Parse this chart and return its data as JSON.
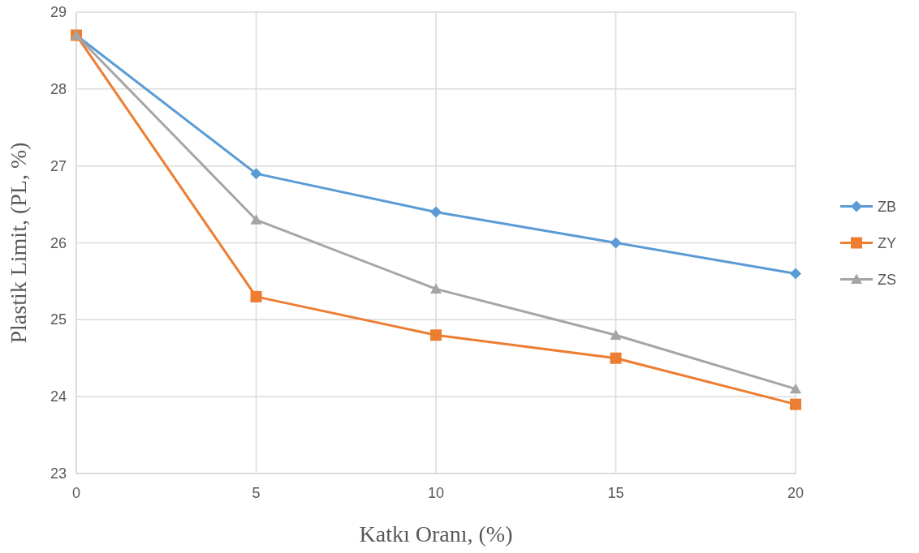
{
  "chart_data": {
    "type": "line",
    "xlabel": "Katkı Oranı, (%)",
    "ylabel": "Plastik Limit, (PL, %)",
    "x": [
      0,
      5,
      10,
      15,
      20
    ],
    "series": [
      {
        "name": "ZB",
        "color": "#5b9bd5",
        "marker": "diamond",
        "values": [
          28.7,
          26.9,
          26.4,
          26.0,
          25.6
        ]
      },
      {
        "name": "ZY",
        "color": "#ed7d31",
        "marker": "square",
        "values": [
          28.7,
          25.3,
          24.8,
          24.5,
          23.9
        ]
      },
      {
        "name": "ZS",
        "color": "#a5a5a5",
        "marker": "triangle",
        "values": [
          28.7,
          26.3,
          25.4,
          24.8,
          24.1
        ]
      }
    ],
    "xlim": [
      0,
      20
    ],
    "xticks": [
      0,
      5,
      10,
      15,
      20
    ],
    "ylim": [
      23,
      29
    ],
    "yticks": [
      23,
      24,
      25,
      26,
      27,
      28,
      29
    ],
    "grid": true,
    "legend": "right",
    "line_style": "solid"
  }
}
